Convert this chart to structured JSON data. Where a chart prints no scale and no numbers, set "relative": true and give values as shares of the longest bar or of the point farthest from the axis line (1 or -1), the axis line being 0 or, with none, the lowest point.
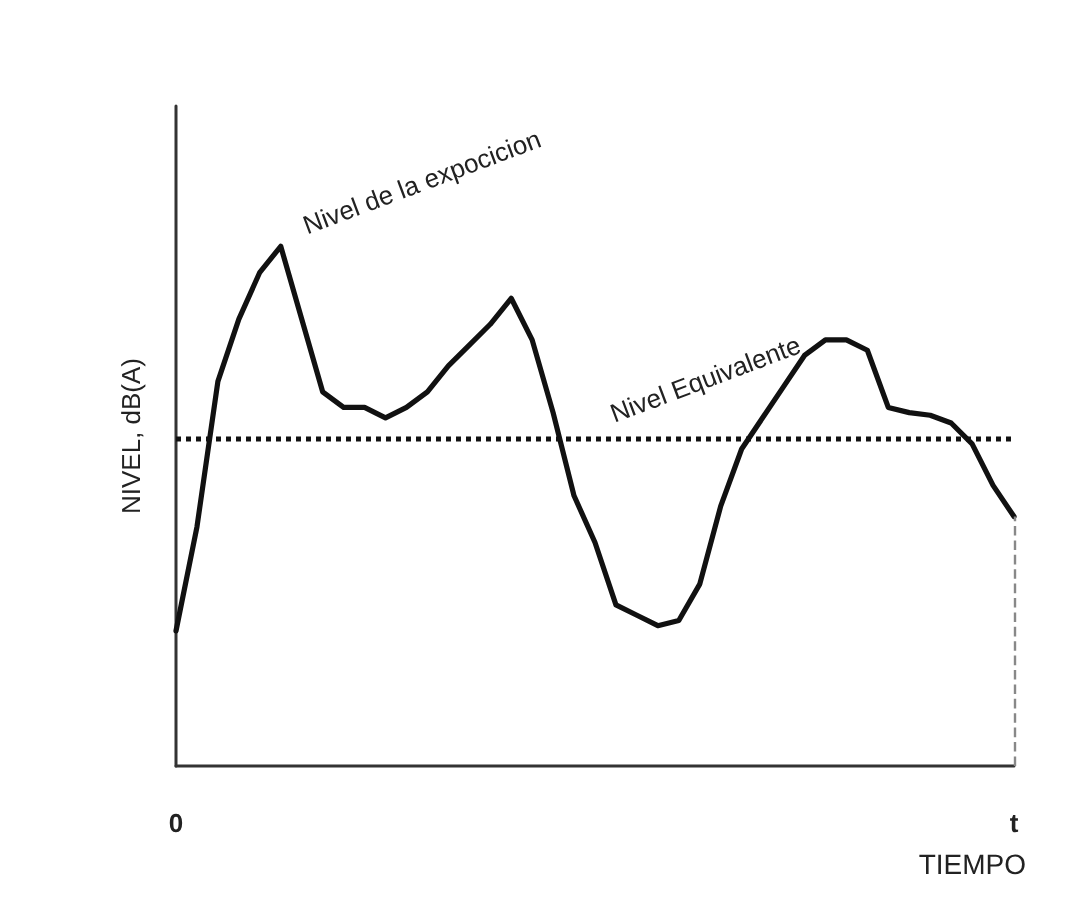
{
  "chart_data": {
    "type": "line",
    "relative": true,
    "ylabel": "NIVEL, dB(A)",
    "xlabel": "TIEMPO",
    "categories": [
      "0",
      null,
      null,
      null,
      null,
      null,
      null,
      null,
      null,
      null,
      null,
      null,
      null,
      null,
      null,
      null,
      null,
      null,
      null,
      null,
      null,
      null,
      null,
      null,
      null,
      null,
      null,
      null,
      null,
      null,
      null,
      null,
      null,
      null,
      null,
      null,
      null,
      null,
      null,
      null,
      "t"
    ],
    "series": [
      {
        "color": "#111111",
        "values": [
          0.26,
          0.46,
          0.74,
          0.86,
          0.95,
          1.0,
          0.86,
          0.72,
          0.69,
          0.69,
          0.67,
          0.69,
          0.72,
          0.77,
          0.81,
          0.85,
          0.9,
          0.82,
          0.68,
          0.52,
          0.43,
          0.31,
          0.29,
          0.27,
          0.28,
          0.35,
          0.5,
          0.61,
          0.67,
          0.73,
          0.79,
          0.82,
          0.82,
          0.8,
          0.69,
          0.68,
          0.675,
          0.66,
          0.62,
          0.54,
          0.48
        ]
      }
    ],
    "ref_lines": [
      {
        "axis": "y",
        "value": 0.63,
        "label": "Nivel Equivalente",
        "color": "#111111",
        "line_style": "dotted"
      },
      {
        "axis": "x",
        "value": "t",
        "label": null,
        "color": "#888888",
        "line_style": "dashed"
      }
    ],
    "annotations": [
      "Nivel de la expocicion"
    ],
    "grid": false,
    "marker": "none",
    "line_style": "solid"
  }
}
